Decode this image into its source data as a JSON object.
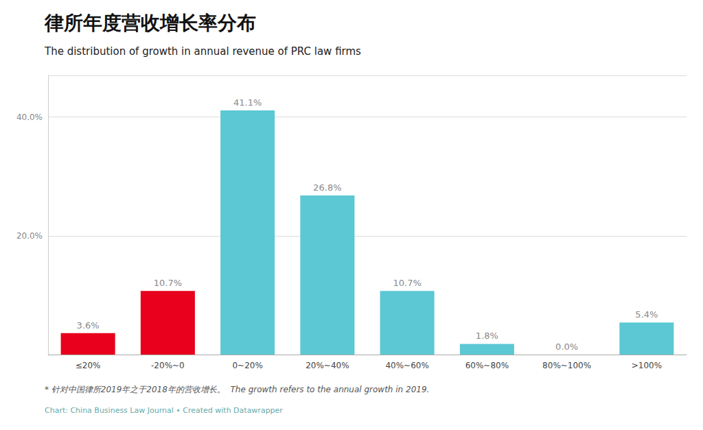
{
  "chart_data": {
    "type": "bar",
    "title": "律所年度营收增长率分布",
    "subtitle": "The distribution of growth in annual revenue of PRC law firms",
    "categories": [
      "≤20%",
      "-20%~0",
      "0~20%",
      "20%~40%",
      "40%~60%",
      "60%~80%",
      "80%~100%",
      ">100%"
    ],
    "values": [
      3.6,
      10.7,
      41.1,
      26.8,
      10.7,
      1.8,
      0.0,
      5.4
    ],
    "value_labels": [
      "3.6%",
      "10.7%",
      "41.1%",
      "26.8%",
      "10.7%",
      "1.8%",
      "0.0%",
      "5.4%"
    ],
    "colors": [
      "#e8001c",
      "#e8001c",
      "#5bc8d4",
      "#5bc8d4",
      "#5bc8d4",
      "#5bc8d4",
      "#5bc8d4",
      "#5bc8d4"
    ],
    "data_labels": true,
    "ylim": [
      0,
      47
    ],
    "yticks": [
      {
        "value": 20.0,
        "label": "20.0%"
      },
      {
        "value": 40.0,
        "label": "40.0%"
      }
    ],
    "grid": true,
    "annotations": [
      "* 针对中国律所2019年之于2018年的营收增长。  The growth refers to the annual growth in 2019.",
      "Chart: China Business Law Journal • Created with Datawrapper"
    ]
  }
}
